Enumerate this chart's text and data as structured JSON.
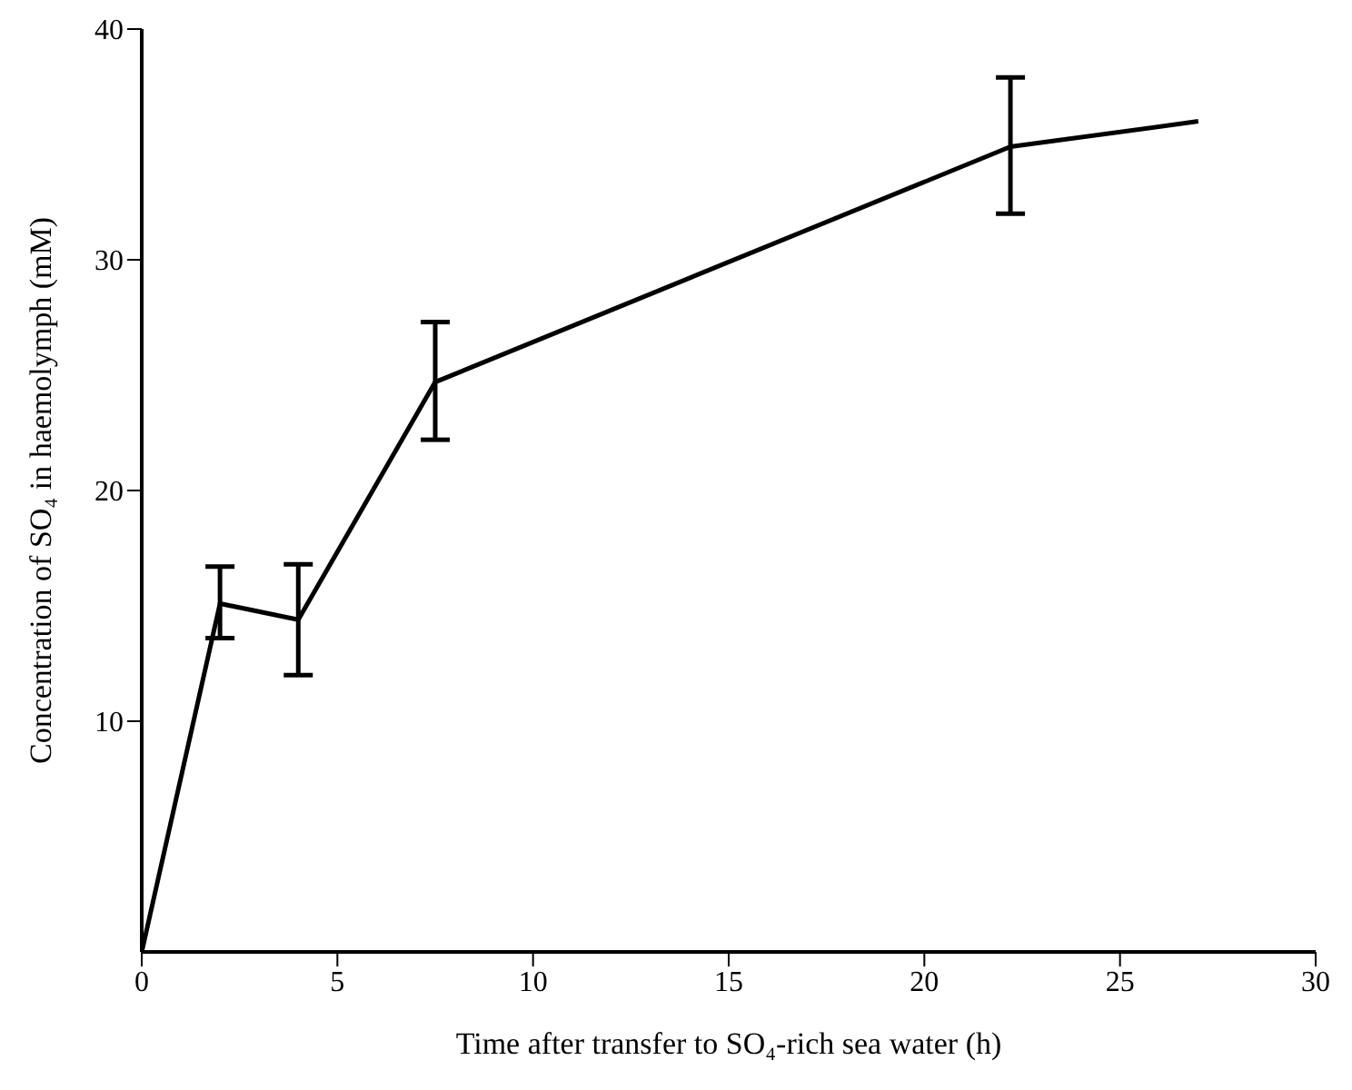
{
  "chart_data": {
    "type": "line",
    "xlabel": "Time after transfer to SO₄-rich sea water (h)",
    "ylabel": "Concentration of SO₄ in haemolymph (mM)",
    "x": [
      0,
      2,
      4,
      7.5,
      22.2,
      27
    ],
    "series": [
      {
        "color": "#000000",
        "values": [
          0,
          15.1,
          14.4,
          24.7,
          34.9,
          36.0
        ],
        "errors": [
          null,
          [
            13.6,
            16.7
          ],
          [
            12.0,
            16.8
          ],
          [
            22.2,
            27.3
          ],
          [
            32.0,
            37.9
          ],
          null
        ]
      }
    ],
    "xlim": [
      0,
      30
    ],
    "xticks": [
      0,
      5,
      10,
      15,
      20,
      25,
      30
    ],
    "ylim": [
      0,
      40
    ],
    "yticks": [
      10,
      20,
      30,
      40
    ],
    "grid": false,
    "legend": false,
    "marker": "none",
    "line_style": "solid"
  }
}
